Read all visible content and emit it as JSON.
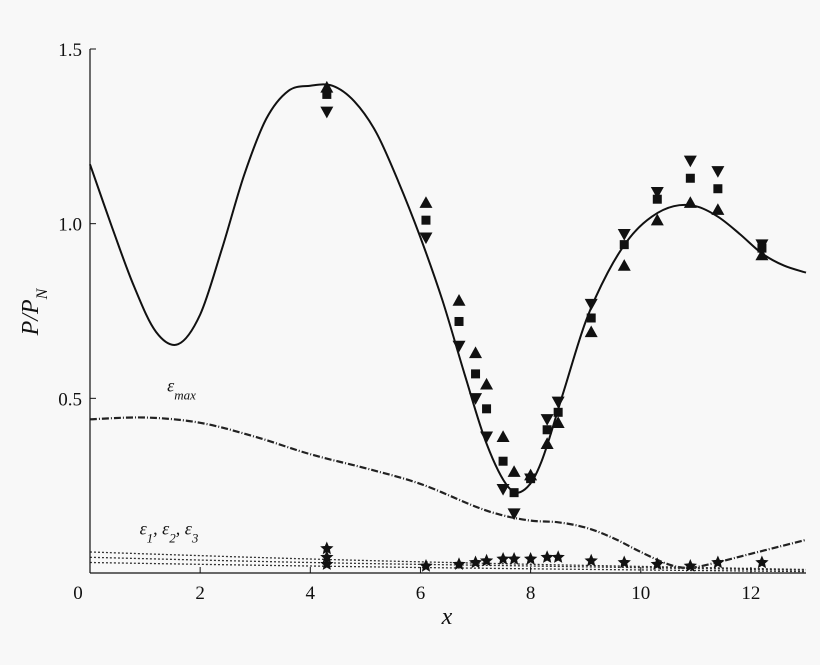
{
  "chart_data": {
    "type": "scatter",
    "title": "",
    "xlabel": "x",
    "ylabel": "P/P_N",
    "xlim": [
      0,
      13
    ],
    "ylim": [
      0,
      1.5
    ],
    "x_ticks": [
      "0",
      "2",
      "4",
      "6",
      "8",
      "10",
      "12"
    ],
    "y_ticks": [
      "0.5",
      "1.0",
      "1.5"
    ],
    "grid": false,
    "annotations": [
      {
        "text": "ε_max",
        "x": 1.4,
        "y": 0.52
      },
      {
        "text": "ε_1, ε_2, ε_3",
        "x": 0.9,
        "y": 0.11
      }
    ],
    "series": [
      {
        "type": "line",
        "style": "solid",
        "x": [
          0,
          0.4,
          0.8,
          1.2,
          1.6,
          2.0,
          2.4,
          2.8,
          3.2,
          3.6,
          4.0,
          4.4,
          4.8,
          5.2,
          5.6,
          6.0,
          6.4,
          6.8,
          7.2,
          7.6,
          7.9,
          8.2,
          8.6,
          9.0,
          9.4,
          9.8,
          10.2,
          10.6,
          11.0,
          11.4,
          11.8,
          12.2,
          12.6,
          13.0
        ],
        "y": [
          1.17,
          0.99,
          0.82,
          0.69,
          0.655,
          0.74,
          0.93,
          1.14,
          1.3,
          1.38,
          1.395,
          1.395,
          1.35,
          1.26,
          1.12,
          0.96,
          0.78,
          0.57,
          0.37,
          0.245,
          0.24,
          0.32,
          0.52,
          0.72,
          0.86,
          0.96,
          1.02,
          1.05,
          1.05,
          1.02,
          0.97,
          0.915,
          0.88,
          0.86
        ]
      },
      {
        "type": "line",
        "style": "dash-dot",
        "x": [
          0,
          1,
          2,
          3,
          4,
          5,
          6,
          7,
          7.5,
          8,
          8.5,
          9,
          9.5,
          10,
          10.5,
          10.9,
          11.5,
          12,
          12.5,
          13
        ],
        "y": [
          0.44,
          0.445,
          0.43,
          0.39,
          0.34,
          0.3,
          0.255,
          0.19,
          0.165,
          0.15,
          0.145,
          0.13,
          0.1,
          0.06,
          0.025,
          0.015,
          0.035,
          0.055,
          0.075,
          0.095
        ]
      },
      {
        "type": "line",
        "style": "dotted",
        "x": [
          0,
          4,
          8,
          13
        ],
        "y": [
          0.06,
          0.04,
          0.025,
          0.01
        ]
      },
      {
        "type": "line",
        "style": "dotted",
        "x": [
          0,
          4,
          8,
          13
        ],
        "y": [
          0.045,
          0.03,
          0.02,
          0.008
        ]
      },
      {
        "type": "line",
        "style": "dotted",
        "x": [
          0,
          4,
          8,
          13
        ],
        "y": [
          0.03,
          0.02,
          0.012,
          0.004
        ]
      },
      {
        "type": "scatter",
        "marker": "triangle-up",
        "x": [
          4.3,
          6.1,
          6.7,
          7.0,
          7.2,
          7.5,
          7.7,
          8.0,
          8.3,
          8.5,
          9.1,
          9.7,
          10.3,
          10.9,
          11.4,
          12.2
        ],
        "y": [
          1.39,
          1.06,
          0.78,
          0.63,
          0.54,
          0.39,
          0.29,
          0.28,
          0.37,
          0.43,
          0.69,
          0.88,
          1.01,
          1.06,
          1.04,
          0.91
        ]
      },
      {
        "type": "scatter",
        "marker": "square",
        "x": [
          4.3,
          6.1,
          6.7,
          7.0,
          7.2,
          7.5,
          7.7,
          8.0,
          8.3,
          8.5,
          9.1,
          9.7,
          10.3,
          10.9,
          11.4,
          12.2
        ],
        "y": [
          1.37,
          1.01,
          0.72,
          0.57,
          0.47,
          0.32,
          0.23,
          0.27,
          0.41,
          0.46,
          0.73,
          0.94,
          1.07,
          1.13,
          1.1,
          0.93
        ]
      },
      {
        "type": "scatter",
        "marker": "triangle-down",
        "x": [
          4.3,
          6.1,
          6.7,
          7.0,
          7.2,
          7.5,
          7.7,
          8.0,
          8.3,
          8.5,
          9.1,
          9.7,
          10.3,
          10.9,
          11.4,
          12.2
        ],
        "y": [
          1.32,
          0.96,
          0.65,
          0.5,
          0.39,
          0.24,
          0.17,
          0.27,
          0.44,
          0.49,
          0.77,
          0.97,
          1.09,
          1.18,
          1.15,
          0.94
        ]
      },
      {
        "type": "scatter",
        "marker": "star-low",
        "x": [
          4.3,
          4.3,
          4.3,
          6.1,
          6.7,
          7.0,
          7.2,
          7.5,
          7.7,
          8.0,
          8.3,
          8.5,
          9.1,
          9.7,
          10.3,
          10.9,
          11.4,
          12.2
        ],
        "y": [
          0.07,
          0.045,
          0.025,
          0.02,
          0.025,
          0.03,
          0.035,
          0.04,
          0.04,
          0.04,
          0.045,
          0.045,
          0.035,
          0.03,
          0.025,
          0.02,
          0.03,
          0.03
        ]
      }
    ]
  }
}
